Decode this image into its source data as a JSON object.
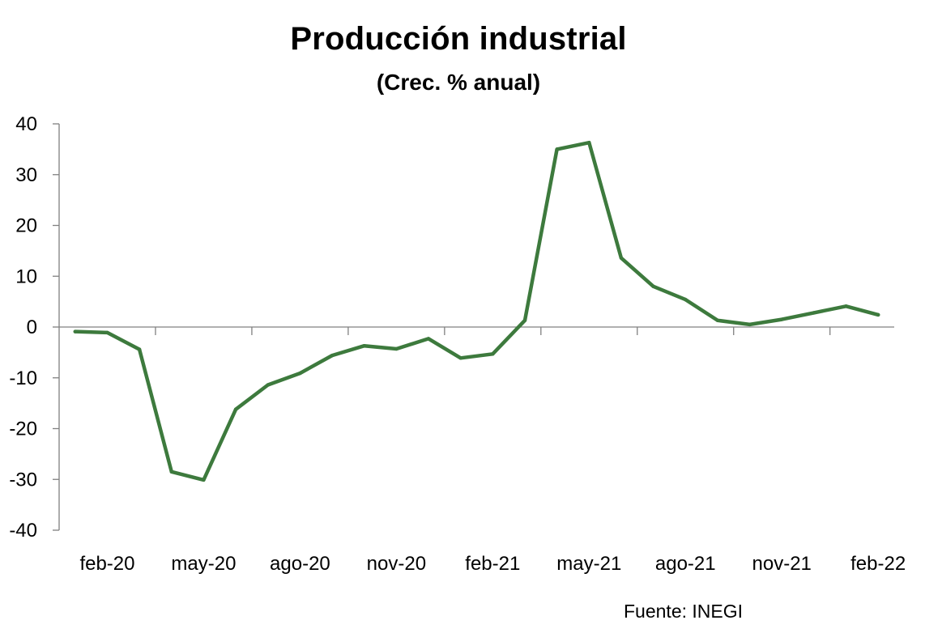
{
  "chart_data": {
    "type": "line",
    "title": "Producción industrial",
    "subtitle": "(Crec. % anual)",
    "source": "Fuente: INEGI",
    "xlabel": "",
    "ylabel": "",
    "ylim": [
      -40,
      40
    ],
    "yticks": [
      40,
      30,
      20,
      10,
      0,
      -10,
      -20,
      -30,
      -40
    ],
    "x_tick_labels": [
      "feb-20",
      "may-20",
      "ago-20",
      "nov-20",
      "feb-21",
      "may-21",
      "ago-21",
      "nov-21",
      "feb-22"
    ],
    "line_color": "#3d7a3d",
    "grid": false,
    "legend": "none",
    "series": [
      {
        "x": [
          "ene-20",
          "feb-20",
          "mar-20",
          "abr-20",
          "may-20",
          "jun-20",
          "jul-20",
          "ago-20",
          "sep-20",
          "oct-20",
          "nov-20",
          "dic-20",
          "ene-21",
          "feb-21",
          "mar-21",
          "abr-21",
          "may-21",
          "jun-21",
          "jul-21",
          "ago-21",
          "sep-21",
          "oct-21",
          "nov-21",
          "dic-21",
          "ene-22",
          "feb-22"
        ],
        "values": [
          -0.9,
          -1.1,
          -4.4,
          -28.5,
          -30.1,
          -16.2,
          -11.4,
          -9.1,
          -5.6,
          -3.7,
          -4.3,
          -2.3,
          -6.1,
          -5.3,
          1.3,
          35.0,
          36.3,
          13.6,
          8.0,
          5.4,
          1.3,
          0.5,
          1.5,
          2.8,
          4.1,
          2.4
        ]
      }
    ]
  }
}
